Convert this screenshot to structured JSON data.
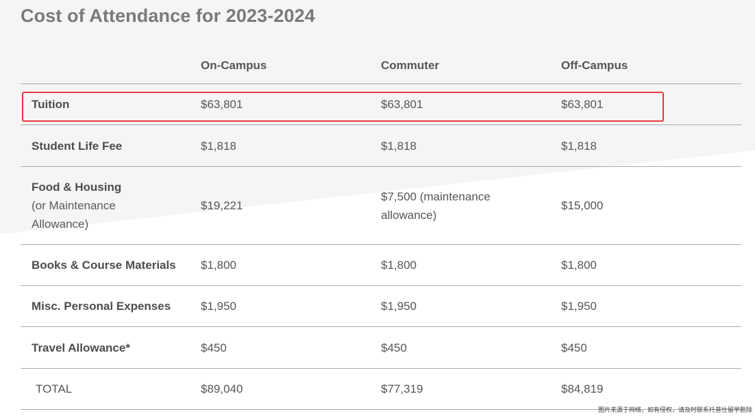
{
  "title": "Cost of Attendance for 2023-2024",
  "columns": [
    "",
    "On-Campus",
    "Commuter",
    "Off-Campus"
  ],
  "rows": {
    "tuition": {
      "label": "Tuition",
      "on_campus": "$63,801",
      "commuter": "$63,801",
      "off_campus": "$63,801"
    },
    "student_life_fee": {
      "label": "Student Life Fee",
      "on_campus": "$1,818",
      "commuter": "$1,818",
      "off_campus": "$1,818"
    },
    "food_housing": {
      "label": "Food & Housing",
      "label_sub_1": "(or Maintenance",
      "label_sub_2": "Allowance)",
      "on_campus": "$19,221",
      "commuter_1": "$7,500 (maintenance",
      "commuter_2": "allowance)",
      "off_campus": "$15,000"
    },
    "books": {
      "label": "Books & Course Materials",
      "on_campus": "$1,800",
      "commuter": "$1,800",
      "off_campus": "$1,800"
    },
    "misc": {
      "label": "Misc. Personal Expenses",
      "on_campus": "$1,950",
      "commuter": "$1,950",
      "off_campus": "$1,950"
    },
    "travel": {
      "label": "Travel Allowance*",
      "on_campus": "$450",
      "commuter": "$450",
      "off_campus": "$450"
    },
    "total": {
      "label": "TOTAL",
      "on_campus": "$89,040",
      "commuter": "$77,319",
      "off_campus": "$84,819"
    }
  },
  "watermark": "图片来源于网络，如有侵权，请及时联系托普仕留学删除",
  "colors": {
    "highlight": "#e5383b",
    "background_shape": "#f5f5f5",
    "rule": "#a8a8a8"
  }
}
